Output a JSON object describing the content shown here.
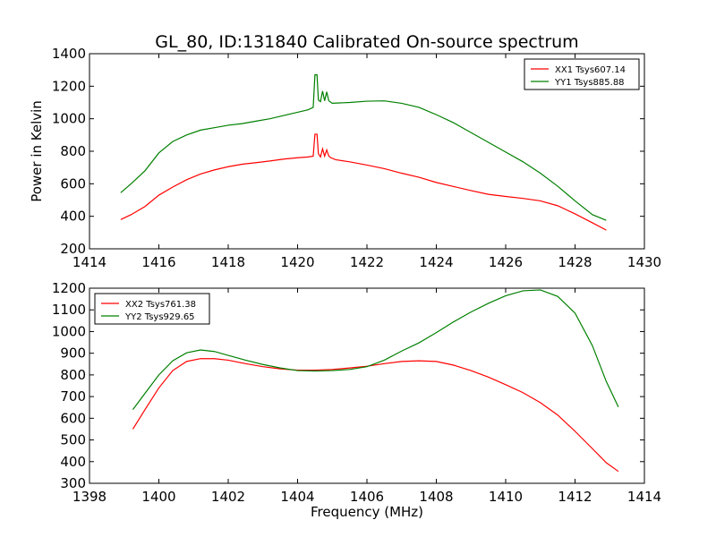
{
  "title": "GL_80, ID:131840 Calibrated On-source spectrum",
  "colors": {
    "xx": "#ff0000",
    "yy": "#008000"
  },
  "chart_data": [
    {
      "type": "line",
      "ylabel": "Power in Kelvin",
      "xlabel": "",
      "xlim": [
        1414,
        1430
      ],
      "ylim": [
        200,
        1400
      ],
      "xticks": [
        "1414",
        "1416",
        "1418",
        "1420",
        "1422",
        "1424",
        "1426",
        "1428",
        "1430"
      ],
      "yticks": [
        "200",
        "400",
        "600",
        "800",
        "1000",
        "1200",
        "1400"
      ],
      "legend_position": "top-right",
      "series": [
        {
          "name": "XX1 Tsys607.14",
          "color": "#ff0000",
          "points": [
            [
              1414.9,
              380
            ],
            [
              1415.2,
              410
            ],
            [
              1415.6,
              460
            ],
            [
              1416.0,
              530
            ],
            [
              1416.4,
              580
            ],
            [
              1416.8,
              625
            ],
            [
              1417.2,
              660
            ],
            [
              1417.6,
              685
            ],
            [
              1418.0,
              705
            ],
            [
              1418.4,
              720
            ],
            [
              1418.8,
              730
            ],
            [
              1419.2,
              740
            ],
            [
              1419.6,
              752
            ],
            [
              1420.0,
              760
            ],
            [
              1420.3,
              765
            ],
            [
              1420.45,
              770
            ],
            [
              1420.5,
              905
            ],
            [
              1420.56,
              905
            ],
            [
              1420.6,
              785
            ],
            [
              1420.66,
              765
            ],
            [
              1420.72,
              815
            ],
            [
              1420.78,
              770
            ],
            [
              1420.84,
              808
            ],
            [
              1420.9,
              770
            ],
            [
              1420.96,
              760
            ],
            [
              1421.1,
              748
            ],
            [
              1421.5,
              735
            ],
            [
              1422.0,
              715
            ],
            [
              1422.5,
              693
            ],
            [
              1423.0,
              665
            ],
            [
              1423.5,
              640
            ],
            [
              1424.0,
              608
            ],
            [
              1424.5,
              583
            ],
            [
              1425.0,
              558
            ],
            [
              1425.5,
              535
            ],
            [
              1426.0,
              522
            ],
            [
              1426.5,
              510
            ],
            [
              1427.0,
              495
            ],
            [
              1427.5,
              465
            ],
            [
              1428.0,
              415
            ],
            [
              1428.5,
              360
            ],
            [
              1428.9,
              315
            ]
          ]
        },
        {
          "name": "YY1 Tsys885.88",
          "color": "#008000",
          "points": [
            [
              1414.9,
              545
            ],
            [
              1415.2,
              600
            ],
            [
              1415.6,
              680
            ],
            [
              1416.0,
              790
            ],
            [
              1416.4,
              860
            ],
            [
              1416.8,
              900
            ],
            [
              1417.2,
              930
            ],
            [
              1417.6,
              945
            ],
            [
              1418.0,
              960
            ],
            [
              1418.4,
              970
            ],
            [
              1418.8,
              985
            ],
            [
              1419.2,
              1000
            ],
            [
              1419.6,
              1020
            ],
            [
              1420.0,
              1040
            ],
            [
              1420.3,
              1055
            ],
            [
              1420.45,
              1070
            ],
            [
              1420.5,
              1270
            ],
            [
              1420.56,
              1270
            ],
            [
              1420.6,
              1115
            ],
            [
              1420.66,
              1105
            ],
            [
              1420.72,
              1170
            ],
            [
              1420.78,
              1110
            ],
            [
              1420.84,
              1165
            ],
            [
              1420.9,
              1110
            ],
            [
              1421.0,
              1095
            ],
            [
              1421.5,
              1100
            ],
            [
              1422.0,
              1108
            ],
            [
              1422.5,
              1110
            ],
            [
              1423.0,
              1095
            ],
            [
              1423.5,
              1070
            ],
            [
              1424.0,
              1025
            ],
            [
              1424.5,
              975
            ],
            [
              1425.0,
              915
            ],
            [
              1425.5,
              855
            ],
            [
              1426.0,
              795
            ],
            [
              1426.5,
              735
            ],
            [
              1427.0,
              665
            ],
            [
              1427.5,
              585
            ],
            [
              1428.0,
              495
            ],
            [
              1428.5,
              410
            ],
            [
              1428.9,
              375
            ]
          ]
        }
      ]
    },
    {
      "type": "line",
      "ylabel": "",
      "xlabel": "Frequency (MHz)",
      "xlim": [
        1398,
        1414
      ],
      "ylim": [
        300,
        1200
      ],
      "xticks": [
        "1398",
        "1400",
        "1402",
        "1404",
        "1406",
        "1408",
        "1410",
        "1412",
        "1414"
      ],
      "yticks": [
        "300",
        "400",
        "500",
        "600",
        "700",
        "800",
        "900",
        "1000",
        "1100",
        "1200"
      ],
      "legend_position": "top-left",
      "series": [
        {
          "name": "XX2 Tsys761.38",
          "color": "#ff0000",
          "points": [
            [
              1399.25,
              550
            ],
            [
              1399.6,
              640
            ],
            [
              1400.0,
              740
            ],
            [
              1400.4,
              820
            ],
            [
              1400.8,
              862
            ],
            [
              1401.2,
              875
            ],
            [
              1401.6,
              875
            ],
            [
              1402.0,
              868
            ],
            [
              1402.5,
              852
            ],
            [
              1403.0,
              838
            ],
            [
              1403.5,
              828
            ],
            [
              1404.0,
              822
            ],
            [
              1404.5,
              822
            ],
            [
              1405.0,
              825
            ],
            [
              1405.5,
              832
            ],
            [
              1406.0,
              840
            ],
            [
              1406.5,
              852
            ],
            [
              1407.0,
              862
            ],
            [
              1407.5,
              865
            ],
            [
              1408.0,
              862
            ],
            [
              1408.5,
              845
            ],
            [
              1409.0,
              820
            ],
            [
              1409.5,
              790
            ],
            [
              1410.0,
              755
            ],
            [
              1410.5,
              718
            ],
            [
              1411.0,
              672
            ],
            [
              1411.5,
              615
            ],
            [
              1412.0,
              540
            ],
            [
              1412.5,
              460
            ],
            [
              1412.9,
              395
            ],
            [
              1413.25,
              355
            ]
          ]
        },
        {
          "name": "YY2 Tsys929.65",
          "color": "#008000",
          "points": [
            [
              1399.25,
              640
            ],
            [
              1399.6,
              715
            ],
            [
              1400.0,
              800
            ],
            [
              1400.4,
              865
            ],
            [
              1400.8,
              902
            ],
            [
              1401.2,
              915
            ],
            [
              1401.6,
              908
            ],
            [
              1402.0,
              890
            ],
            [
              1402.5,
              868
            ],
            [
              1403.0,
              848
            ],
            [
              1403.5,
              832
            ],
            [
              1404.0,
              820
            ],
            [
              1404.5,
              818
            ],
            [
              1405.0,
              820
            ],
            [
              1405.5,
              825
            ],
            [
              1406.0,
              838
            ],
            [
              1406.5,
              868
            ],
            [
              1407.0,
              910
            ],
            [
              1407.5,
              948
            ],
            [
              1408.0,
              995
            ],
            [
              1408.5,
              1045
            ],
            [
              1409.0,
              1090
            ],
            [
              1409.5,
              1130
            ],
            [
              1410.0,
              1165
            ],
            [
              1410.5,
              1188
            ],
            [
              1411.0,
              1192
            ],
            [
              1411.5,
              1162
            ],
            [
              1412.0,
              1085
            ],
            [
              1412.5,
              935
            ],
            [
              1412.9,
              770
            ],
            [
              1413.25,
              652
            ]
          ]
        }
      ]
    }
  ]
}
